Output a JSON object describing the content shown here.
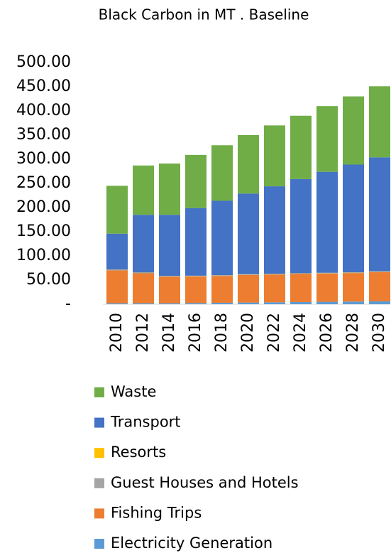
{
  "chart_data": {
    "type": "stacked_bar",
    "title": "Black Carbon in MT . Baseline",
    "categories": [
      "2010",
      "2012",
      "2014",
      "2016",
      "2018",
      "2020",
      "2022",
      "2024",
      "2026",
      "2028",
      "2030"
    ],
    "series": [
      {
        "name": "Electricity Generation",
        "color": "#5b9bd5",
        "values": [
          2,
          2,
          2,
          2.5,
          3,
          3.5,
          4,
          4.5,
          5,
          5.5,
          6
        ]
      },
      {
        "name": "Fishing Trips",
        "color": "#ed7d31",
        "values": [
          68,
          62,
          55,
          55,
          55.5,
          57,
          57.5,
          58,
          58.5,
          59,
          60.5
        ]
      },
      {
        "name": "Guest Houses and Hotels",
        "color": "#a5a5a5",
        "values": [
          1,
          1,
          1,
          1,
          1,
          1,
          1,
          1,
          1,
          1,
          1
        ]
      },
      {
        "name": "Resorts",
        "color": "#ffc000",
        "values": [
          0.5,
          0.5,
          0.5,
          0.5,
          0.5,
          0.5,
          0.5,
          0.5,
          0.5,
          0.5,
          0.5
        ]
      },
      {
        "name": "Transport",
        "color": "#4472c4",
        "values": [
          74.5,
          119.5,
          126.5,
          140,
          154,
          167,
          181,
          195,
          209,
          223,
          236
        ]
      },
      {
        "name": "Waste",
        "color": "#70ad47",
        "values": [
          99,
          102,
          106,
          110,
          115,
          121,
          126,
          131,
          136,
          141,
          147
        ]
      }
    ],
    "ylim": [
      0,
      500
    ],
    "yticks": [
      {
        "value": 0,
        "label": "-"
      },
      {
        "value": 50,
        "label": "50.00"
      },
      {
        "value": 100,
        "label": "100.00"
      },
      {
        "value": 150,
        "label": "150.00"
      },
      {
        "value": 200,
        "label": "200.00"
      },
      {
        "value": 250,
        "label": "250.00"
      },
      {
        "value": 300,
        "label": "300.00"
      },
      {
        "value": 350,
        "label": "350.00"
      },
      {
        "value": 400,
        "label": "400.00"
      },
      {
        "value": 450,
        "label": "450.00"
      },
      {
        "value": 500,
        "label": "500.00"
      }
    ],
    "grid": false
  }
}
